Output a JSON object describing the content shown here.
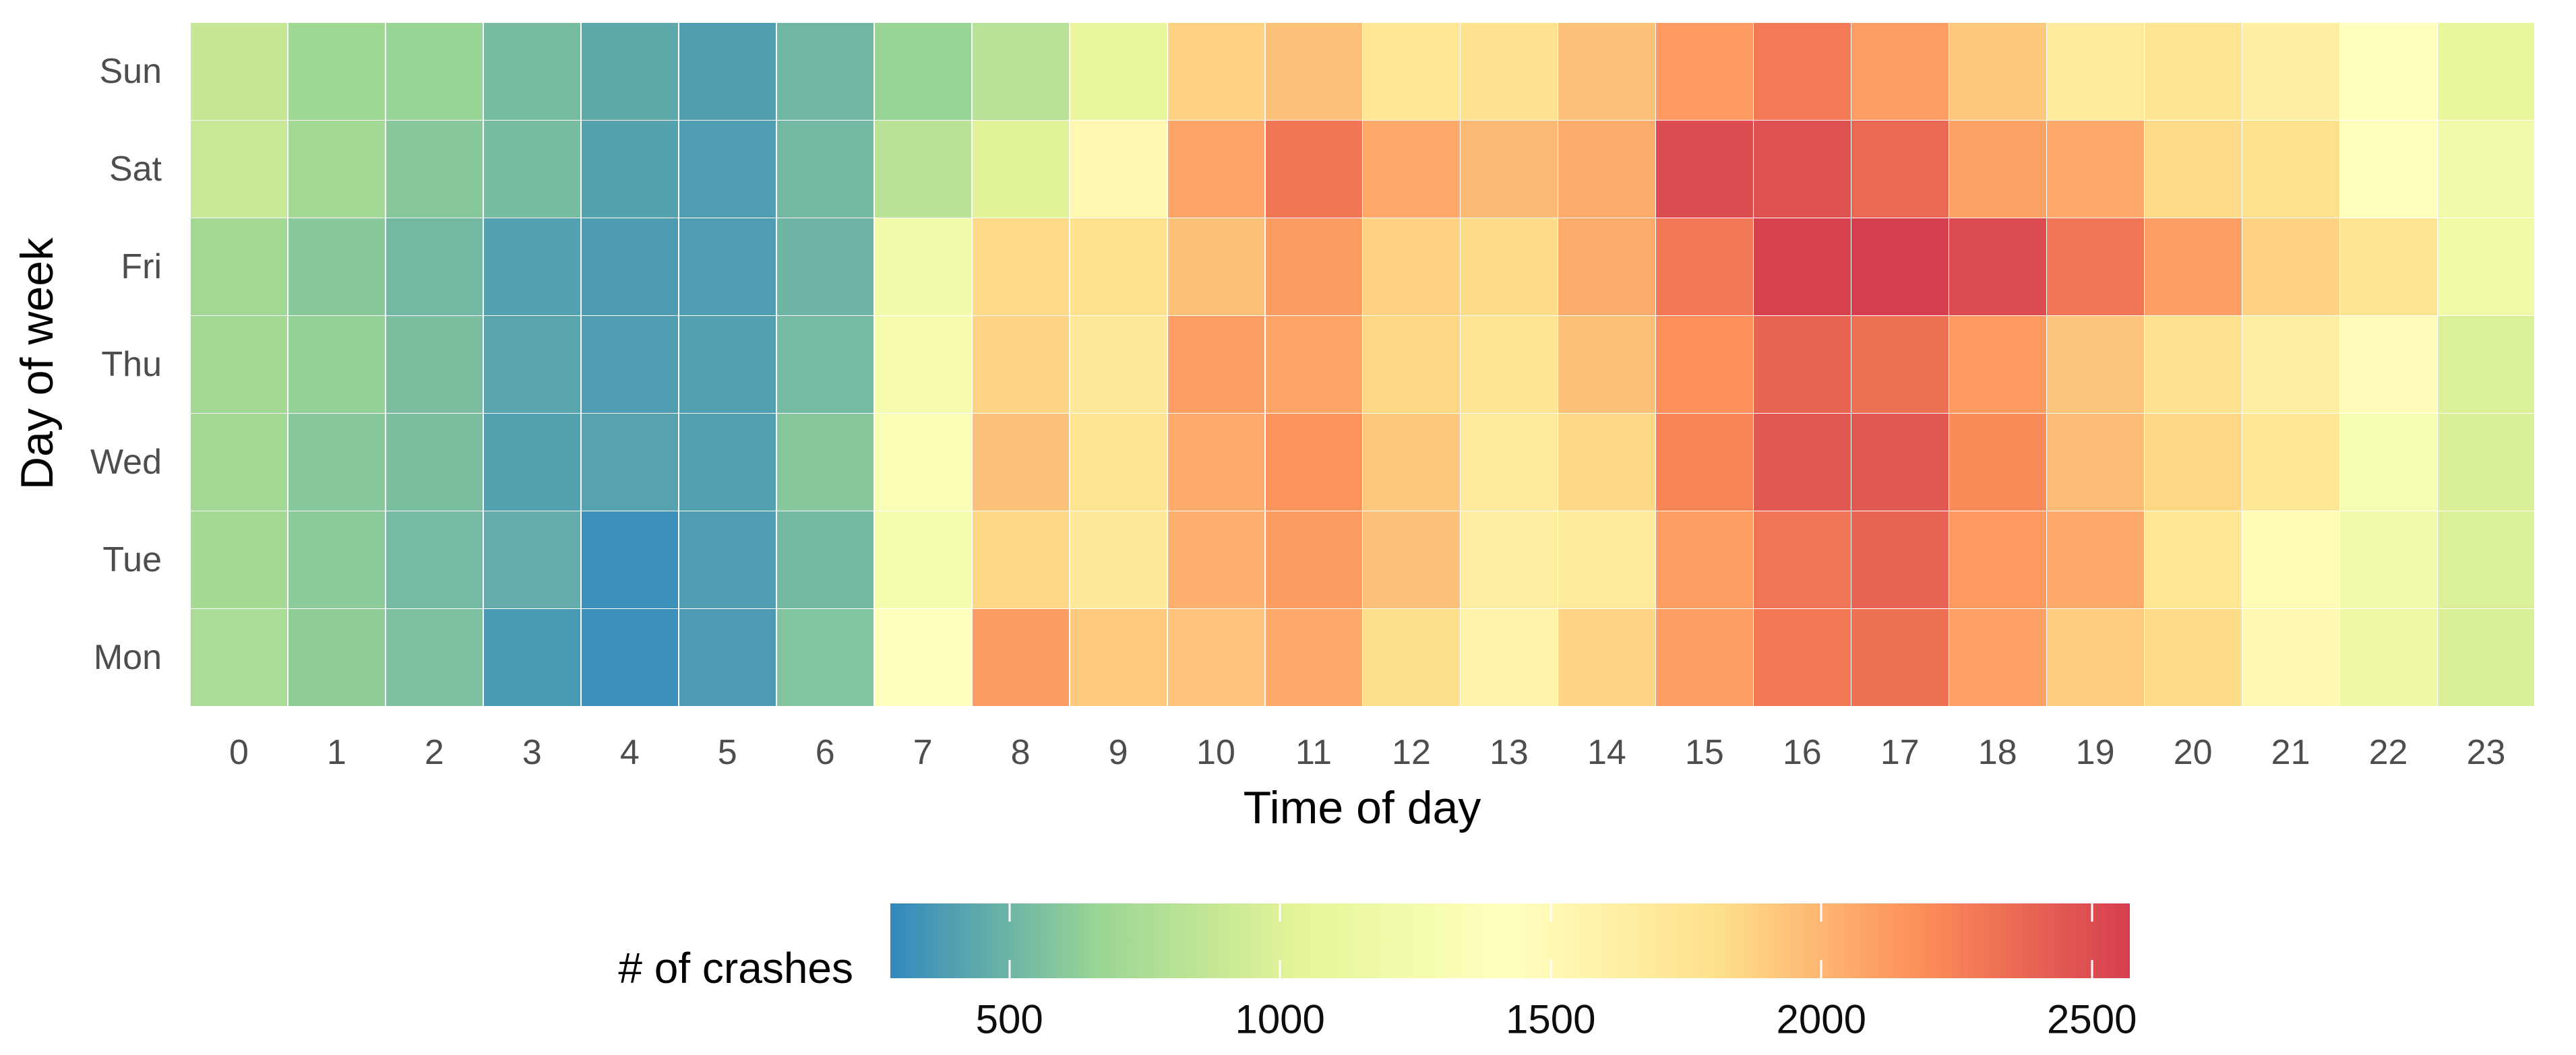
{
  "colors": {
    "background": "#ffffff",
    "tile_border": "#ffffff",
    "axis_text": "#4d4d4d",
    "axis_title_text": "#000000",
    "legend_text": "#0d0d0d"
  },
  "chart_data": {
    "type": "heatmap",
    "title": "",
    "xlabel": "Time of day",
    "ylabel": "Day of week",
    "x_categories": [
      "0",
      "1",
      "2",
      "3",
      "4",
      "5",
      "6",
      "7",
      "8",
      "9",
      "10",
      "11",
      "12",
      "13",
      "14",
      "15",
      "16",
      "17",
      "18",
      "19",
      "20",
      "21",
      "22",
      "23"
    ],
    "y_categories": [
      "Sun",
      "Sat",
      "Fri",
      "Thu",
      "Wed",
      "Tue",
      "Mon"
    ],
    "legend": {
      "title": "# of crashes",
      "position": "bottom",
      "min": 280,
      "max": 2570,
      "tick_values": [
        500,
        1000,
        1500,
        2000,
        2500
      ],
      "tick_labels": [
        "500",
        "1000",
        "1500",
        "2000",
        "2500"
      ]
    },
    "palette": {
      "name": "Spectral reversed (blue = low, red = high)",
      "stops": [
        "#3288bd",
        "#99d594",
        "#e6f598",
        "#ffffbf",
        "#fee08b",
        "#fc8d59",
        "#d53e4f"
      ]
    },
    "series": [
      {
        "name": "Sun",
        "values": [
          880,
          690,
          655,
          540,
          445,
          395,
          510,
          655,
          810,
          1100,
          1870,
          1945,
          1730,
          1780,
          1955,
          2130,
          2280,
          2115,
          1920,
          1680,
          1740,
          1630,
          1400,
          1100
        ]
      },
      {
        "name": "Sat",
        "values": [
          890,
          710,
          590,
          540,
          410,
          390,
          520,
          820,
          1010,
          1520,
          2080,
          2300,
          2060,
          1980,
          2050,
          2500,
          2480,
          2360,
          2090,
          2060,
          1830,
          1790,
          1400,
          1210
        ]
      },
      {
        "name": "Fri",
        "values": [
          700,
          600,
          520,
          400,
          380,
          385,
          505,
          1240,
          1840,
          1800,
          1950,
          2120,
          1880,
          1820,
          2050,
          2290,
          2550,
          2570,
          2510,
          2310,
          2110,
          1870,
          1760,
          1180
        ]
      },
      {
        "name": "Thu",
        "values": [
          715,
          640,
          550,
          425,
          390,
          400,
          530,
          1280,
          1860,
          1700,
          2110,
          2080,
          1850,
          1750,
          1950,
          2180,
          2380,
          2330,
          2130,
          1930,
          1780,
          1640,
          1470,
          990
        ]
      },
      {
        "name": "Wed",
        "values": [
          715,
          590,
          550,
          405,
          415,
          400,
          590,
          1330,
          1945,
          1760,
          2055,
          2160,
          1920,
          1680,
          1850,
          2230,
          2440,
          2450,
          2200,
          1970,
          1850,
          1730,
          1310,
          980
        ]
      },
      {
        "name": "Tue",
        "values": [
          720,
          610,
          530,
          460,
          320,
          390,
          525,
          1260,
          1850,
          1690,
          2030,
          2120,
          1955,
          1640,
          1680,
          2110,
          2310,
          2390,
          2130,
          2060,
          1730,
          1490,
          1200,
          990
        ]
      },
      {
        "name": "Mon",
        "values": [
          750,
          620,
          560,
          370,
          320,
          375,
          575,
          1420,
          2120,
          1910,
          1940,
          2060,
          1810,
          1590,
          1860,
          2110,
          2290,
          2330,
          2100,
          1900,
          1820,
          1500,
          1160,
          980
        ]
      }
    ]
  }
}
